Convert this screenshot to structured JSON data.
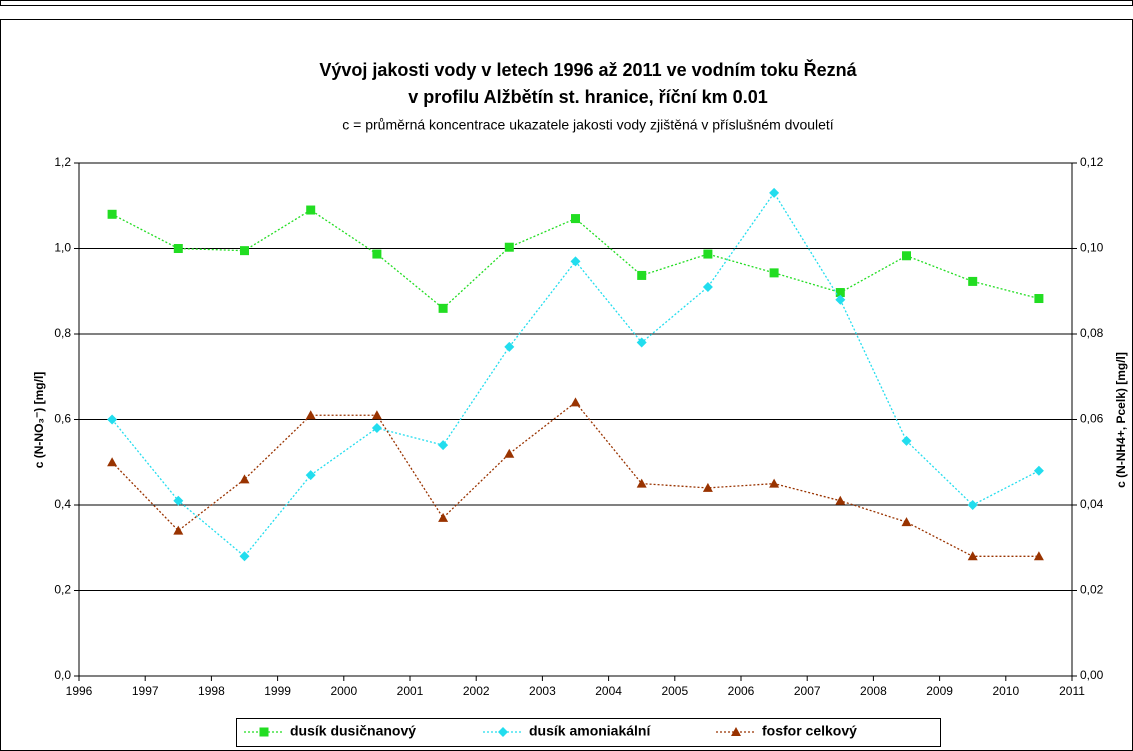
{
  "chart_data": {
    "type": "line",
    "title": "Vývoj jakosti vody v letech 1996 až 2011 ve vodním toku Řezná",
    "title2": "v profilu Alžbětín st. hranice, říční km 0.01",
    "subtitle": "c = průměrná koncentrace ukazatele jakosti vody zjištěná v příslušném dvouletí",
    "ylabel": "c (N-NO₃⁻) [mg/l]",
    "y2label": "c (N-NH4+, Pcelk) [mg/l]",
    "x": [
      1996.5,
      1997.5,
      1998.5,
      1999.5,
      2000.5,
      2001.5,
      2002.5,
      2003.5,
      2004.5,
      2005.5,
      2006.5,
      2007.5,
      2008.5,
      2009.5,
      2010.5
    ],
    "xlim": [
      1996,
      2011
    ],
    "xticks": [
      1996,
      1997,
      1998,
      1999,
      2000,
      2001,
      2002,
      2003,
      2004,
      2005,
      2006,
      2007,
      2008,
      2009,
      2010,
      2011
    ],
    "ylim": [
      0,
      1.2
    ],
    "yticks": [
      {
        "value": 0,
        "label": "0,0"
      },
      {
        "value": 0.2,
        "label": "0,2"
      },
      {
        "value": 0.4,
        "label": "0,4"
      },
      {
        "value": 0.6,
        "label": "0,6"
      },
      {
        "value": 0.8,
        "label": "0,8"
      },
      {
        "value": 1.0,
        "label": "1,0"
      },
      {
        "value": 1.2,
        "label": "1,2"
      }
    ],
    "y2lim": [
      0,
      0.12
    ],
    "y2ticks": [
      {
        "value": 0,
        "label": "0,00"
      },
      {
        "value": 0.02,
        "label": "0,02"
      },
      {
        "value": 0.04,
        "label": "0,04"
      },
      {
        "value": 0.06,
        "label": "0,06"
      },
      {
        "value": 0.08,
        "label": "0,08"
      },
      {
        "value": 0.1,
        "label": "0,10"
      },
      {
        "value": 0.12,
        "label": "0,12"
      }
    ],
    "grid": true,
    "legend": "bottom",
    "series": [
      {
        "name": "dusík dusičnanový",
        "color": "#22dd22",
        "marker": "square",
        "values": [
          1.08,
          1.0,
          0.995,
          1.09,
          0.987,
          0.86,
          1.003,
          1.07,
          0.937,
          0.987,
          0.943,
          0.897,
          0.983,
          0.923,
          0.883
        ]
      },
      {
        "name": "dusík amoniakální",
        "color": "#22ddee",
        "marker": "diamond",
        "axis": "y2",
        "values": [
          0.06,
          0.041,
          0.028,
          0.047,
          0.058,
          0.054,
          0.077,
          0.097,
          0.078,
          0.091,
          0.113,
          0.088,
          0.055,
          0.04,
          0.048
        ]
      },
      {
        "name": "fosfor celkový",
        "color": "#993300",
        "marker": "triangle",
        "axis": "y2",
        "values": [
          0.05,
          0.034,
          0.046,
          0.061,
          0.061,
          0.037,
          0.052,
          0.064,
          0.045,
          0.044,
          0.045,
          0.041,
          0.036,
          0.028,
          0.028
        ]
      }
    ]
  }
}
